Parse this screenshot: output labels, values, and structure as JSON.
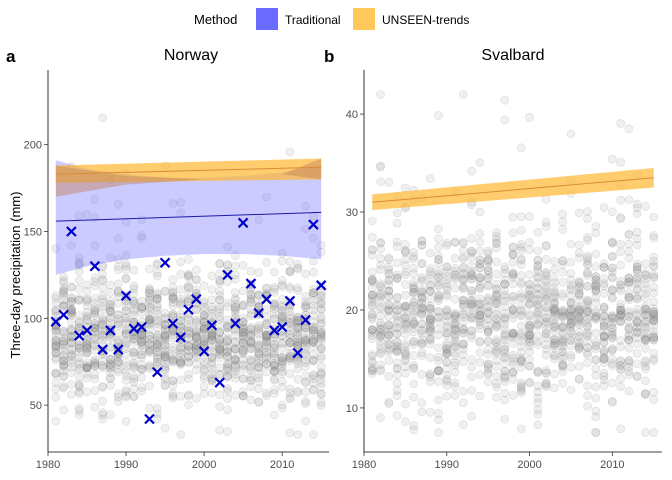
{
  "legend": {
    "title": "Method",
    "entries": [
      {
        "label": "Traditional",
        "color": "#6b6bff"
      },
      {
        "label": "UNSEEN-trends",
        "color": "#ffc85a"
      }
    ]
  },
  "ylabel": "Three-day precipitation (mm)",
  "chart_data": [
    {
      "type": "scatter",
      "tag": "a",
      "title": "Norway",
      "xlim": [
        1980,
        2016
      ],
      "ylim": [
        23,
        243
      ],
      "x_ticks": [
        1980,
        1990,
        2000,
        2010
      ],
      "y_ticks": [
        50,
        100,
        150,
        200
      ],
      "x_tick_labels": [
        "1980",
        "1990",
        "2000",
        "2010"
      ],
      "y_tick_labels": [
        "50",
        "100",
        "150",
        "200"
      ],
      "grid": false,
      "ensemble_points": {
        "year_range": [
          1981,
          2015
        ],
        "per_year": 40,
        "center": 88,
        "spread": 18,
        "min": 33,
        "max": 232
      },
      "unseen_band": {
        "x": [
          1981,
          2015
        ],
        "center": [
          183,
          187
        ],
        "lower": [
          178,
          180
        ],
        "upper": [
          188,
          192
        ]
      },
      "unseen_upper_range": {
        "x": [
          1981,
          1990,
          2000,
          2010,
          2015
        ],
        "upper": [
          188,
          182,
          180,
          183,
          192
        ],
        "lower": [
          170,
          177,
          180,
          183,
          180
        ]
      },
      "traditional_fit": {
        "x": [
          1981,
          2015
        ],
        "y": [
          156,
          161
        ]
      },
      "traditional_band": {
        "x": [
          1981,
          1985,
          1990,
          1995,
          2000,
          2005,
          2010,
          2015
        ],
        "lower": [
          125,
          130,
          134,
          136,
          137,
          137,
          136,
          134
        ],
        "upper": [
          191,
          186,
          183,
          181,
          181,
          182,
          184,
          188
        ]
      },
      "observations": {
        "x": [
          1981,
          1982,
          1983,
          1984,
          1985,
          1986,
          1987,
          1988,
          1989,
          1990,
          1991,
          1992,
          1993,
          1994,
          1995,
          1996,
          1997,
          1998,
          1999,
          2000,
          2001,
          2002,
          2003,
          2004,
          2005,
          2006,
          2007,
          2008,
          2009,
          2010,
          2011,
          2012,
          2013,
          2014,
          2015
        ],
        "y": [
          98,
          102,
          150,
          90,
          93,
          130,
          82,
          93,
          82,
          113,
          94,
          95,
          42,
          69,
          132,
          97,
          89,
          105,
          111,
          81,
          96,
          63,
          125,
          97,
          155,
          120,
          103,
          111,
          93,
          95,
          110,
          80,
          99,
          154,
          119
        ]
      }
    },
    {
      "type": "scatter",
      "tag": "b",
      "title": "Svalbard",
      "xlim": [
        1980,
        2016
      ],
      "ylim": [
        5.5,
        44.5
      ],
      "x_ticks": [
        1980,
        1990,
        2000,
        2010
      ],
      "y_ticks": [
        10,
        20,
        30,
        40
      ],
      "x_tick_labels": [
        "1980",
        "1990",
        "2000",
        "2010"
      ],
      "y_tick_labels": [
        "10",
        "20",
        "30",
        "40"
      ],
      "grid": false,
      "ensemble_points": {
        "year_range": [
          1981,
          2015
        ],
        "per_year": 40,
        "center": 19,
        "spread": 4.2,
        "min": 7.5,
        "max": 42
      },
      "unseen_band": {
        "x": [
          1981,
          2015
        ],
        "center": [
          31,
          33.5
        ],
        "lower": [
          30.2,
          32.5
        ],
        "upper": [
          31.8,
          34.5
        ]
      }
    }
  ]
}
